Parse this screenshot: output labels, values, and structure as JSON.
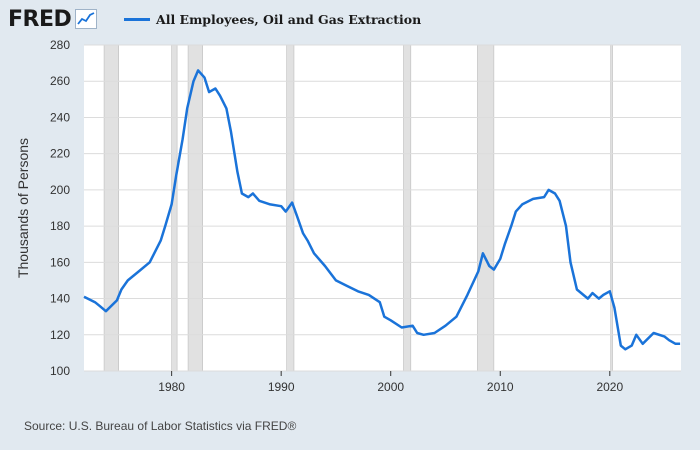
{
  "header": {
    "logo_text": "FRED",
    "logo_icon": "line-graph-icon"
  },
  "footer": {
    "source": "Source: U.S. Bureau of Labor Statistics via FRED®"
  },
  "colors": {
    "background": "#e1e9f0",
    "plot_background": "#ffffff",
    "series_line": "#1a73d9",
    "recession": "#e1e1e1",
    "gridline": "#dcdcdc"
  },
  "chart_data": {
    "type": "line",
    "title": "",
    "xlabel": "",
    "ylabel": "Thousands of Persons",
    "xlim": [
      "1972-01-01",
      "2026-07-01"
    ],
    "ylim": [
      100,
      280
    ],
    "y_ticks": [
      100,
      120,
      140,
      160,
      180,
      200,
      220,
      240,
      260,
      280
    ],
    "x_ticks": [
      1980,
      1990,
      2000,
      2010,
      2020
    ],
    "x_tick_labels": [
      "1980",
      "1990",
      "2000",
      "2010",
      "2020"
    ],
    "grid": "horizontal",
    "legend_position": "top",
    "recessions": [
      [
        "1973-11-01",
        "1975-03-01"
      ],
      [
        "1980-01-01",
        "1980-07-01"
      ],
      [
        "1981-07-01",
        "1982-11-01"
      ],
      [
        "1990-07-01",
        "1991-03-01"
      ],
      [
        "2001-03-01",
        "2001-11-01"
      ],
      [
        "2007-12-01",
        "2009-06-01"
      ],
      [
        "2020-02-01",
        "2020-04-01"
      ]
    ],
    "series": [
      {
        "name": "All Employees, Oil and Gas Extraction",
        "x": [
          "1972-01-01",
          "1973-01-01",
          "1973-06-01",
          "1974-01-01",
          "1975-01-01",
          "1975-06-01",
          "1976-01-01",
          "1977-01-01",
          "1978-01-01",
          "1979-01-01",
          "1979-06-01",
          "1980-01-01",
          "1980-06-01",
          "1981-01-01",
          "1981-06-01",
          "1982-01-01",
          "1982-06-01",
          "1983-01-01",
          "1983-06-01",
          "1984-01-01",
          "1984-06-01",
          "1985-01-01",
          "1985-06-01",
          "1986-01-01",
          "1986-06-01",
          "1987-01-01",
          "1987-06-01",
          "1988-01-01",
          "1989-01-01",
          "1990-01-01",
          "1990-06-01",
          "1991-01-01",
          "1991-06-01",
          "1992-01-01",
          "1992-06-01",
          "1993-01-01",
          "1994-01-01",
          "1995-01-01",
          "1996-01-01",
          "1997-01-01",
          "1998-01-01",
          "1999-01-01",
          "1999-06-01",
          "2000-01-01",
          "2001-01-01",
          "2002-01-01",
          "2002-06-01",
          "2003-01-01",
          "2004-01-01",
          "2005-01-01",
          "2006-01-01",
          "2007-01-01",
          "2008-01-01",
          "2008-06-01",
          "2009-01-01",
          "2009-06-01",
          "2010-01-01",
          "2010-06-01",
          "2011-01-01",
          "2011-06-01",
          "2012-01-01",
          "2013-01-01",
          "2014-01-01",
          "2014-06-01",
          "2015-01-01",
          "2015-06-01",
          "2016-01-01",
          "2016-06-01",
          "2017-01-01",
          "2018-01-01",
          "2018-06-01",
          "2019-01-01",
          "2019-06-01",
          "2020-01-01",
          "2020-06-01",
          "2021-01-01",
          "2021-06-01",
          "2022-01-01",
          "2022-06-01",
          "2023-01-01",
          "2024-01-01",
          "2025-01-01",
          "2025-06-01",
          "2026-01-01",
          "2026-06-01"
        ],
        "values": [
          141,
          138,
          136,
          133,
          139,
          145,
          150,
          155,
          160,
          172,
          180,
          192,
          208,
          228,
          245,
          260,
          266,
          262,
          254,
          256,
          252,
          245,
          232,
          210,
          198,
          196,
          198,
          194,
          192,
          191,
          188,
          193,
          186,
          176,
          172,
          165,
          158,
          150,
          147,
          144,
          142,
          138,
          130,
          128,
          124,
          125,
          121,
          120,
          121,
          125,
          130,
          142,
          155,
          165,
          158,
          156,
          162,
          170,
          180,
          188,
          192,
          195,
          196,
          200,
          198,
          194,
          180,
          160,
          145,
          140,
          143,
          140,
          142,
          144,
          135,
          114,
          112,
          114,
          120,
          115,
          121,
          119,
          117,
          115,
          115
        ]
      }
    ]
  }
}
